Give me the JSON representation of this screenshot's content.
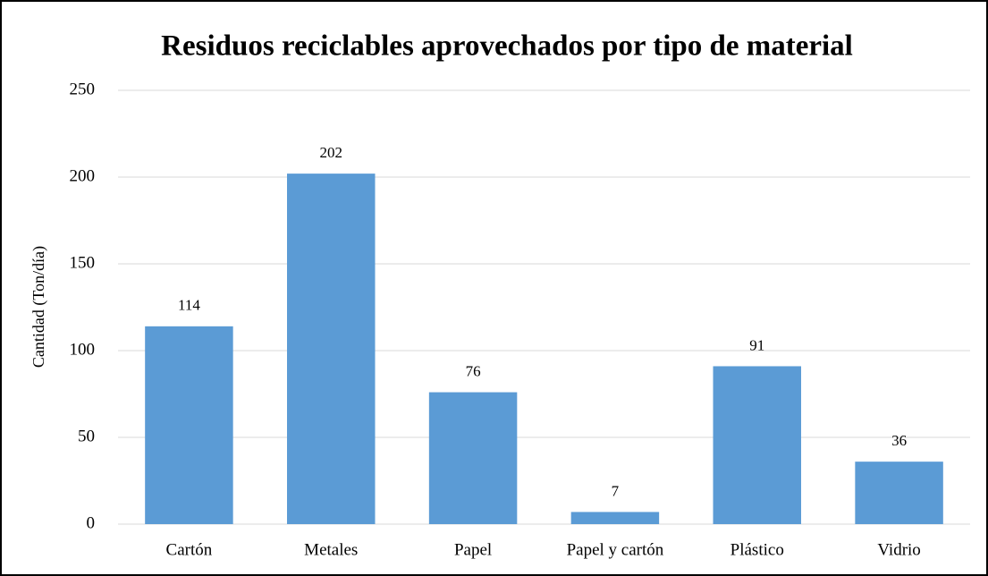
{
  "chart_data": {
    "type": "bar",
    "title": "Residuos reciclables aprovechados por tipo de material",
    "y_label": "Cantidad (Ton/día)",
    "categories": [
      "Cartón",
      "Metales",
      "Papel",
      "Papel y cartón",
      "Plástico",
      "Vidrio"
    ],
    "values": [
      114,
      202,
      76,
      7,
      91,
      36
    ],
    "color": "#5b9bd5",
    "ylim": [
      0,
      250
    ],
    "yticks": [
      0,
      50,
      100,
      150,
      200,
      250
    ],
    "grid": true
  }
}
